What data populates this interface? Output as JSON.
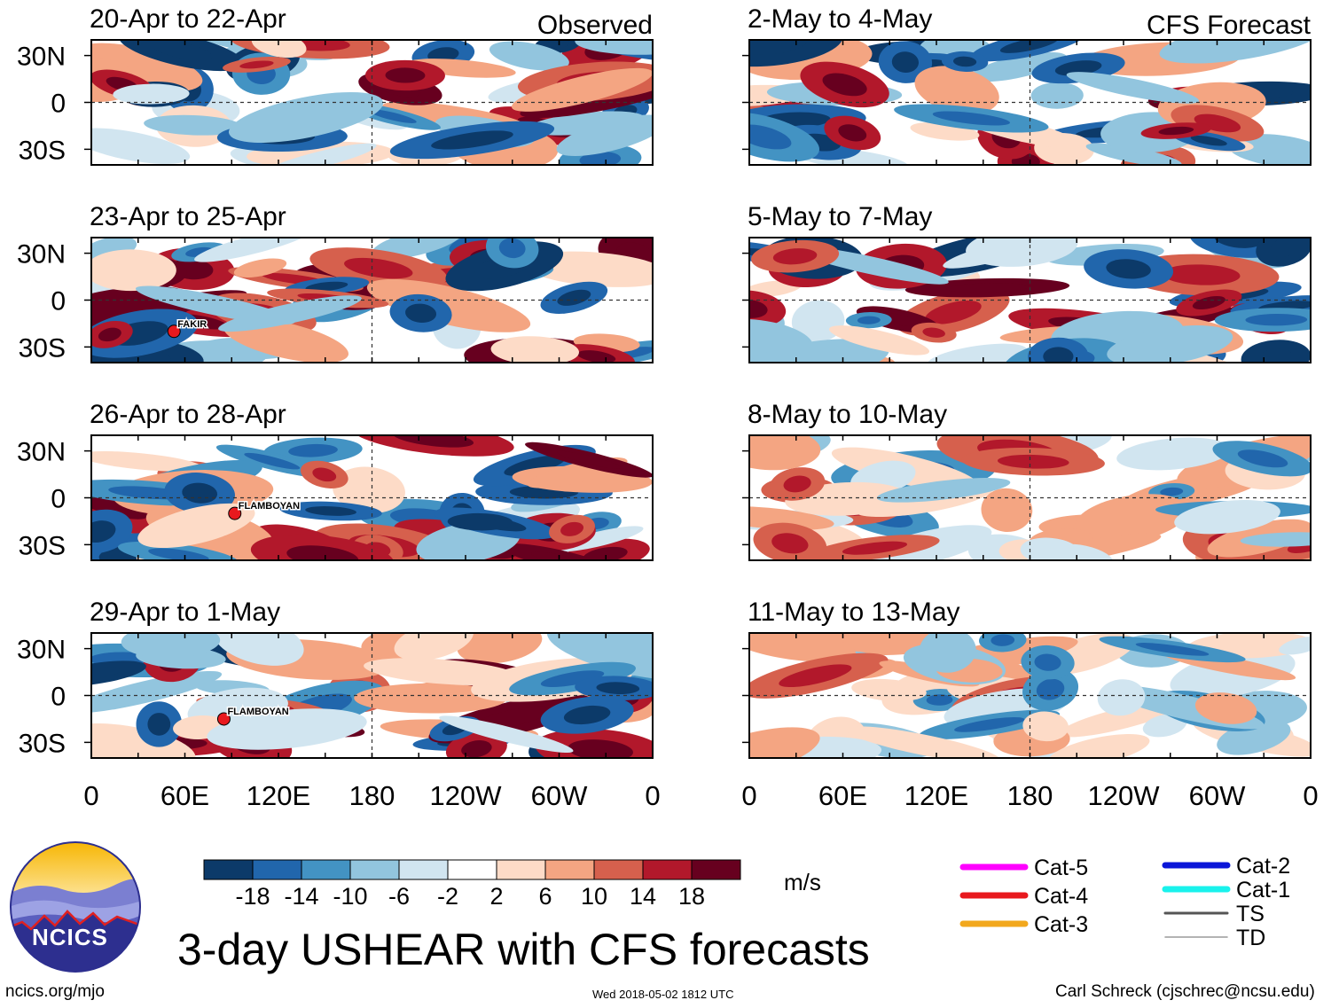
{
  "chart_data": {
    "type": "heatmap",
    "title": "3-day USHEAR with CFS forecasts",
    "units": "m/s",
    "column_headers": [
      "Observed",
      "CFS Forecast"
    ],
    "longitude_ticks": [
      "0",
      "60E",
      "120E",
      "180",
      "120W",
      "60W",
      "0"
    ],
    "latitude_ticks": [
      "30N",
      "0",
      "30S"
    ],
    "colorbar": {
      "labels": [
        "-18",
        "-14",
        "-10",
        "-6",
        "-2",
        "2",
        "6",
        "10",
        "14",
        "18"
      ],
      "colors": [
        "#0c3a69",
        "#2166ac",
        "#4393c3",
        "#92c5de",
        "#d1e5f0",
        "#ffffff",
        "#fddbc7",
        "#f4a582",
        "#d6604d",
        "#b2182b",
        "#67001f"
      ]
    },
    "panels": [
      {
        "period": "20-Apr to 22-Apr",
        "source": "Observed"
      },
      {
        "period": "23-Apr to 25-Apr",
        "source": "Observed",
        "storms": [
          {
            "name": "FAKIR",
            "lon": 53,
            "lat": -20
          }
        ]
      },
      {
        "period": "26-Apr to 28-Apr",
        "source": "Observed",
        "storms": [
          {
            "name": "FLAMBOYAN",
            "lon": 92,
            "lat": -10
          }
        ]
      },
      {
        "period": "29-Apr to 1-May",
        "source": "Observed",
        "storms": [
          {
            "name": "FLAMBOYAN",
            "lon": 85,
            "lat": -15
          }
        ]
      },
      {
        "period": "2-May to 4-May",
        "source": "CFS Forecast"
      },
      {
        "period": "5-May to 7-May",
        "source": "CFS Forecast"
      },
      {
        "period": "8-May to 10-May",
        "source": "CFS Forecast"
      },
      {
        "period": "11-May to 13-May",
        "source": "CFS Forecast"
      }
    ],
    "legend": [
      {
        "label": "Cat-5",
        "color": "#ff00ff"
      },
      {
        "label": "Cat-4",
        "color": "#e8191e"
      },
      {
        "label": "Cat-3",
        "color": "#f2a81d"
      },
      {
        "label": "Cat-2",
        "color": "#0a16d8"
      },
      {
        "label": "Cat-1",
        "color": "#19f2ec"
      },
      {
        "label": "TS",
        "color": "#555555"
      },
      {
        "label": "TD",
        "color": "#9a9a9a"
      }
    ]
  },
  "logo": {
    "text": "NCICS"
  },
  "footer": {
    "site": "ncics.org/mjo",
    "timestamp": "Wed 2018-05-02 1812 UTC",
    "author": "Carl Schreck (cjschrec@ncsu.edu)"
  }
}
